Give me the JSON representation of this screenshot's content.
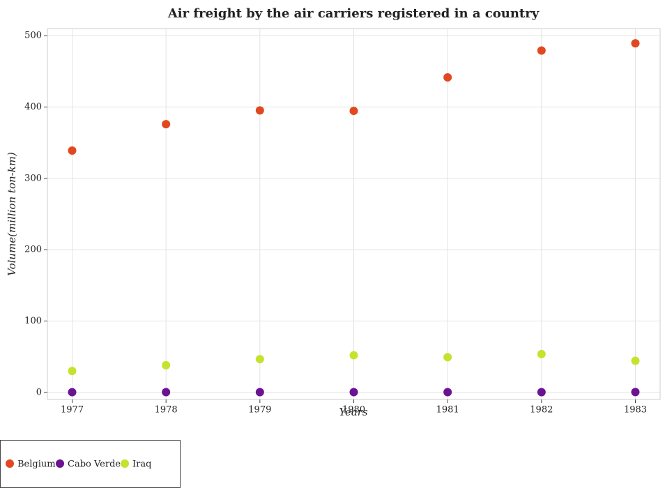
{
  "chart_data": {
    "type": "scatter",
    "title": "Air freight by the air carriers registered in a country",
    "x_label": "Years",
    "y_label": "Volume(million ton-km)",
    "categories": [
      "1977",
      "1978",
      "1979",
      "1980",
      "1981",
      "1982",
      "1983"
    ],
    "series": [
      {
        "name": "Belgium",
        "color": "#e2481f",
        "values": [
          339,
          376,
          395.3,
          394.6,
          441.6,
          479.2,
          489.3
        ]
      },
      {
        "name": "Cabo Verde",
        "color": "#6b1392",
        "values": [
          0.2,
          0.3,
          0.3,
          0.3,
          0.3,
          0.3,
          0.4
        ]
      },
      {
        "name": "Iraq",
        "color": "#c6e22e",
        "values": [
          30,
          38,
          46.6,
          52,
          49.3,
          53.6,
          44.3
        ]
      }
    ],
    "ylim": [
      -10,
      510
    ],
    "yticks": [
      0,
      100,
      200,
      300,
      400,
      500
    ],
    "grid": true
  }
}
